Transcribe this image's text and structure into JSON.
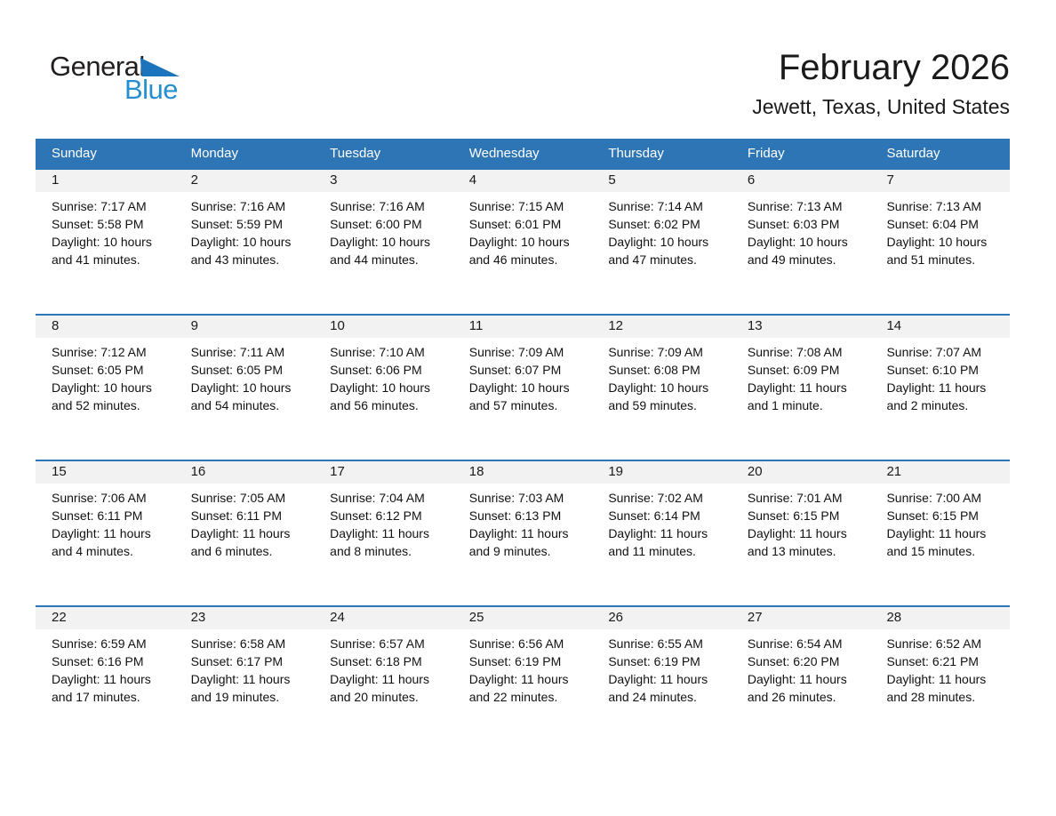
{
  "logo": {
    "general": "General",
    "blue": "Blue"
  },
  "header": {
    "title": "February 2026",
    "subtitle": "Jewett, Texas, United States"
  },
  "colors": {
    "header_blue": "#2E75B6",
    "row_border_blue": "#2E75B6",
    "day_band_gray": "#F2F2F2",
    "logo_black": "#231F20",
    "logo_triangle_blue": "#1C75BC",
    "logo_text_blue": "#2590CF"
  },
  "calendar": {
    "weekdays": [
      "Sunday",
      "Monday",
      "Tuesday",
      "Wednesday",
      "Thursday",
      "Friday",
      "Saturday"
    ],
    "weeks": [
      [
        {
          "day": "1",
          "lines": [
            "Sunrise: 7:17 AM",
            "Sunset: 5:58 PM",
            "Daylight: 10 hours and 41 minutes."
          ]
        },
        {
          "day": "2",
          "lines": [
            "Sunrise: 7:16 AM",
            "Sunset: 5:59 PM",
            "Daylight: 10 hours and 43 minutes."
          ]
        },
        {
          "day": "3",
          "lines": [
            "Sunrise: 7:16 AM",
            "Sunset: 6:00 PM",
            "Daylight: 10 hours and 44 minutes."
          ]
        },
        {
          "day": "4",
          "lines": [
            "Sunrise: 7:15 AM",
            "Sunset: 6:01 PM",
            "Daylight: 10 hours and 46 minutes."
          ]
        },
        {
          "day": "5",
          "lines": [
            "Sunrise: 7:14 AM",
            "Sunset: 6:02 PM",
            "Daylight: 10 hours and 47 minutes."
          ]
        },
        {
          "day": "6",
          "lines": [
            "Sunrise: 7:13 AM",
            "Sunset: 6:03 PM",
            "Daylight: 10 hours and 49 minutes."
          ]
        },
        {
          "day": "7",
          "lines": [
            "Sunrise: 7:13 AM",
            "Sunset: 6:04 PM",
            "Daylight: 10 hours and 51 minutes."
          ]
        }
      ],
      [
        {
          "day": "8",
          "lines": [
            "Sunrise: 7:12 AM",
            "Sunset: 6:05 PM",
            "Daylight: 10 hours and 52 minutes."
          ]
        },
        {
          "day": "9",
          "lines": [
            "Sunrise: 7:11 AM",
            "Sunset: 6:05 PM",
            "Daylight: 10 hours and 54 minutes."
          ]
        },
        {
          "day": "10",
          "lines": [
            "Sunrise: 7:10 AM",
            "Sunset: 6:06 PM",
            "Daylight: 10 hours and 56 minutes."
          ]
        },
        {
          "day": "11",
          "lines": [
            "Sunrise: 7:09 AM",
            "Sunset: 6:07 PM",
            "Daylight: 10 hours and 57 minutes."
          ]
        },
        {
          "day": "12",
          "lines": [
            "Sunrise: 7:09 AM",
            "Sunset: 6:08 PM",
            "Daylight: 10 hours and 59 minutes."
          ]
        },
        {
          "day": "13",
          "lines": [
            "Sunrise: 7:08 AM",
            "Sunset: 6:09 PM",
            "Daylight: 11 hours and 1 minute."
          ]
        },
        {
          "day": "14",
          "lines": [
            "Sunrise: 7:07 AM",
            "Sunset: 6:10 PM",
            "Daylight: 11 hours and 2 minutes."
          ]
        }
      ],
      [
        {
          "day": "15",
          "lines": [
            "Sunrise: 7:06 AM",
            "Sunset: 6:11 PM",
            "Daylight: 11 hours and 4 minutes."
          ]
        },
        {
          "day": "16",
          "lines": [
            "Sunrise: 7:05 AM",
            "Sunset: 6:11 PM",
            "Daylight: 11 hours and 6 minutes."
          ]
        },
        {
          "day": "17",
          "lines": [
            "Sunrise: 7:04 AM",
            "Sunset: 6:12 PM",
            "Daylight: 11 hours and 8 minutes."
          ]
        },
        {
          "day": "18",
          "lines": [
            "Sunrise: 7:03 AM",
            "Sunset: 6:13 PM",
            "Daylight: 11 hours and 9 minutes."
          ]
        },
        {
          "day": "19",
          "lines": [
            "Sunrise: 7:02 AM",
            "Sunset: 6:14 PM",
            "Daylight: 11 hours and 11 minutes."
          ]
        },
        {
          "day": "20",
          "lines": [
            "Sunrise: 7:01 AM",
            "Sunset: 6:15 PM",
            "Daylight: 11 hours and 13 minutes."
          ]
        },
        {
          "day": "21",
          "lines": [
            "Sunrise: 7:00 AM",
            "Sunset: 6:15 PM",
            "Daylight: 11 hours and 15 minutes."
          ]
        }
      ],
      [
        {
          "day": "22",
          "lines": [
            "Sunrise: 6:59 AM",
            "Sunset: 6:16 PM",
            "Daylight: 11 hours and 17 minutes."
          ]
        },
        {
          "day": "23",
          "lines": [
            "Sunrise: 6:58 AM",
            "Sunset: 6:17 PM",
            "Daylight: 11 hours and 19 minutes."
          ]
        },
        {
          "day": "24",
          "lines": [
            "Sunrise: 6:57 AM",
            "Sunset: 6:18 PM",
            "Daylight: 11 hours and 20 minutes."
          ]
        },
        {
          "day": "25",
          "lines": [
            "Sunrise: 6:56 AM",
            "Sunset: 6:19 PM",
            "Daylight: 11 hours and 22 minutes."
          ]
        },
        {
          "day": "26",
          "lines": [
            "Sunrise: 6:55 AM",
            "Sunset: 6:19 PM",
            "Daylight: 11 hours and 24 minutes."
          ]
        },
        {
          "day": "27",
          "lines": [
            "Sunrise: 6:54 AM",
            "Sunset: 6:20 PM",
            "Daylight: 11 hours and 26 minutes."
          ]
        },
        {
          "day": "28",
          "lines": [
            "Sunrise: 6:52 AM",
            "Sunset: 6:21 PM",
            "Daylight: 11 hours and 28 minutes."
          ]
        }
      ]
    ]
  }
}
